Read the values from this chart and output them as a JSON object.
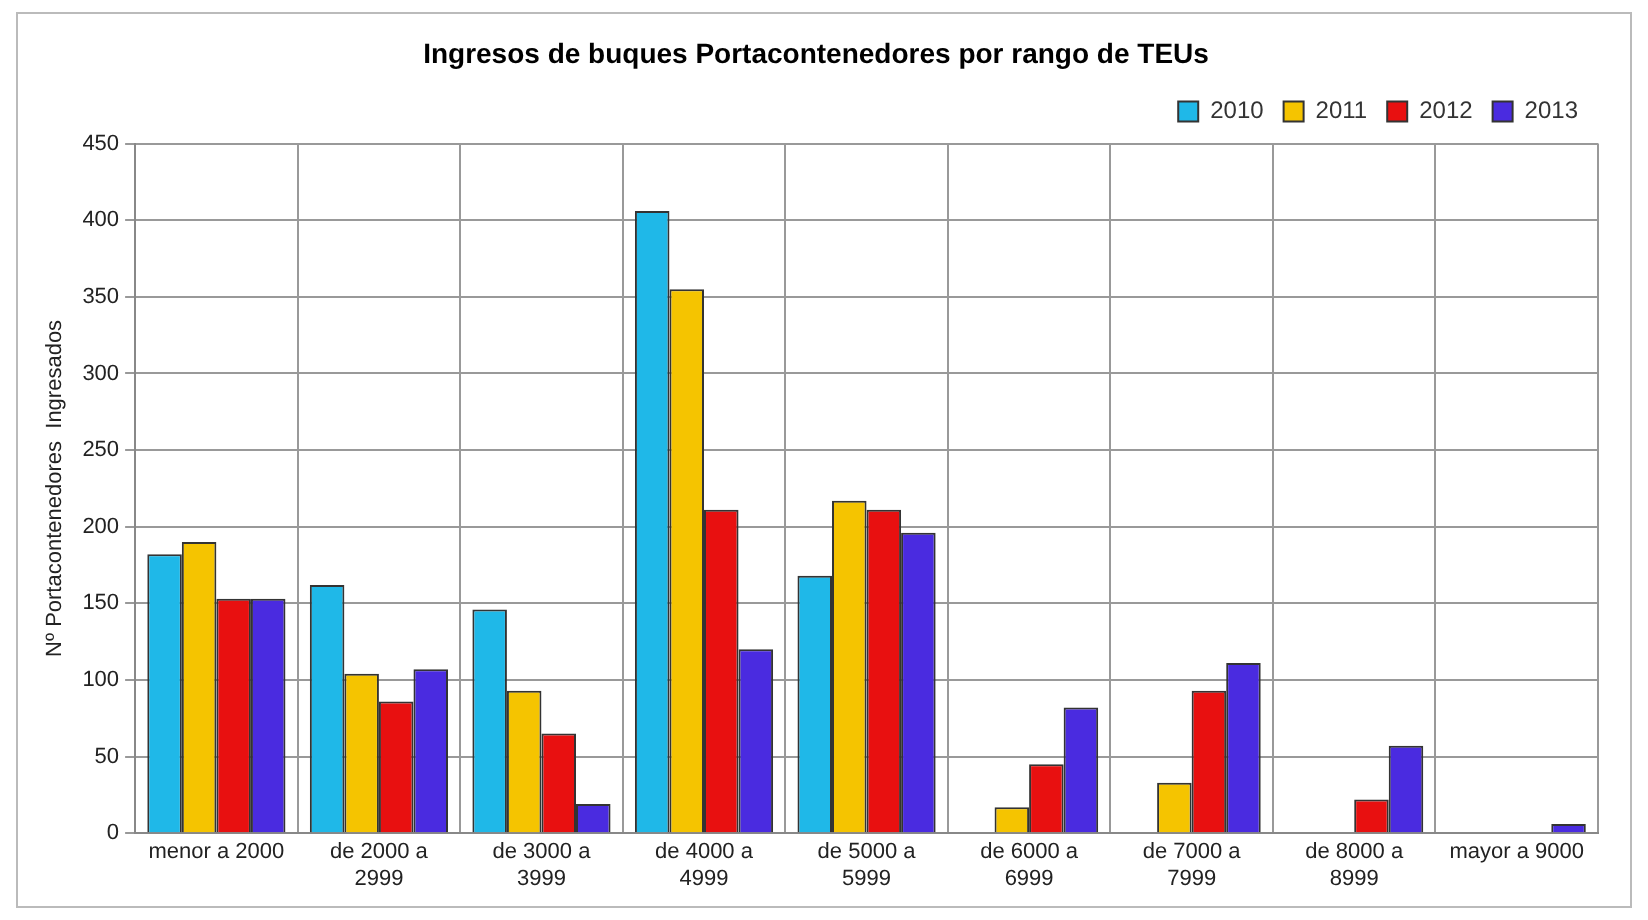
{
  "chart_data": {
    "type": "bar",
    "title": "Ingresos de buques Portacontenedores por rango de TEUs",
    "ylabel": "Nº Portacontenedores  Ingresados",
    "categories": [
      "menor a 2000",
      "de 2000 a 2999",
      "de 3000 a 3999",
      "de 4000 a 4999",
      "de 5000 a 5999",
      "de 6000 a 6999",
      "de 7000 a 7999",
      "de 8000 a 8999",
      "mayor a 9000"
    ],
    "series": [
      {
        "name": "2010",
        "color": "#1fb8e8",
        "values": [
          182,
          162,
          146,
          406,
          168,
          0,
          0,
          0,
          0
        ]
      },
      {
        "name": "2011",
        "color": "#f5c400",
        "values": [
          190,
          104,
          93,
          355,
          217,
          17,
          33,
          0,
          0
        ]
      },
      {
        "name": "2012",
        "color": "#e81010",
        "values": [
          153,
          86,
          65,
          211,
          211,
          45,
          93,
          22,
          0
        ]
      },
      {
        "name": "2013",
        "color": "#4a2be0",
        "values": [
          153,
          107,
          19,
          120,
          196,
          82,
          111,
          57,
          6
        ]
      }
    ],
    "ylim": [
      0,
      450
    ],
    "yticks": [
      0,
      50,
      100,
      150,
      200,
      250,
      300,
      350,
      400,
      450
    ],
    "grid": true,
    "legend": "top right"
  }
}
